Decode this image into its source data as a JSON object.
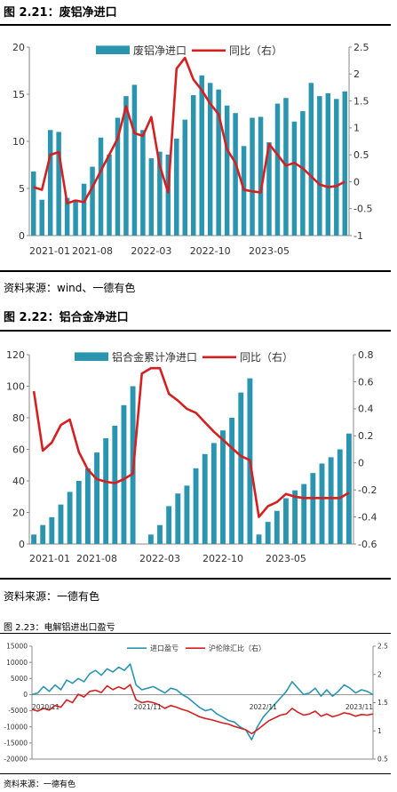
{
  "figures": [
    {
      "title": "图 2.21：废铝净进口",
      "source": "资料来源：wind、一德有色",
      "chart_data": {
        "type": "bar",
        "series": [
          {
            "name": "废铝净进口",
            "type": "bar",
            "axis": "left",
            "color": "#2B95B0",
            "values": [
              6.8,
              3.8,
              11.2,
              11.0,
              4.0,
              3.8,
              5.5,
              7.3,
              10.4,
              8.6,
              12.5,
              14.8,
              16.0,
              11.2,
              8.2,
              8.9,
              8.6,
              10.3,
              12.3,
              14.9,
              17.0,
              16.2,
              15.5,
              13.8,
              13.0,
              9.5,
              12.5,
              12.6,
              9.9,
              14.0,
              14.6,
              12.1,
              13.2,
              16.2,
              14.8,
              15.1,
              14.5,
              15.3
            ]
          },
          {
            "name": "同比（右）",
            "type": "line",
            "axis": "right",
            "color": "#D42020",
            "values": [
              -0.1,
              -0.15,
              0.5,
              0.55,
              -0.4,
              -0.35,
              -0.38,
              -0.1,
              0.2,
              0.5,
              0.8,
              1.4,
              0.9,
              0.85,
              1.2,
              0.3,
              -0.2,
              2.1,
              2.3,
              1.9,
              1.7,
              1.45,
              1.25,
              0.6,
              0.35,
              -0.15,
              -0.18,
              -0.2,
              0.7,
              0.5,
              0.3,
              0.35,
              0.25,
              0.1,
              -0.05,
              -0.1,
              -0.08,
              0.0
            ]
          }
        ],
        "x_labels": [
          "2021-01",
          "2021-08",
          "2022-03",
          "2022-10",
          "2023-05"
        ],
        "x_label_index": [
          0,
          7,
          14,
          21,
          28
        ],
        "y_left": {
          "min": 0,
          "max": 20,
          "ticks": [
            0,
            5,
            10,
            15,
            20
          ]
        },
        "y_right": {
          "min": -1,
          "max": 2.5,
          "ticks": [
            -1,
            -0.5,
            0,
            0.5,
            1,
            1.5,
            2,
            2.5
          ]
        },
        "legend": "top-center"
      }
    },
    {
      "title": "图 2.22：铝合金净进口",
      "source": "资料来源：一德有色",
      "chart_data": {
        "type": "bar",
        "series": [
          {
            "name": "铝合金累计净进口",
            "type": "bar",
            "axis": "left",
            "color": "#2B95B0",
            "values": [
              6,
              12,
              17,
              25,
              33,
              40,
              48,
              58,
              67,
              75,
              88,
              100,
              null,
              6,
              12,
              24,
              32,
              37,
              48,
              57,
              64,
              72,
              80,
              96,
              105,
              6,
              14,
              21,
              29,
              34,
              38,
              45,
              51,
              55,
              60,
              70
            ]
          },
          {
            "name": "同比（右）",
            "type": "line",
            "axis": "right",
            "color": "#D42020",
            "values": [
              0.53,
              0.09,
              0.15,
              0.28,
              0.32,
              0.08,
              -0.05,
              -0.12,
              -0.14,
              -0.15,
              -0.12,
              -0.08,
              0.66,
              0.7,
              0.7,
              0.51,
              0.46,
              0.4,
              0.37,
              0.3,
              0.23,
              0.17,
              0.11,
              0.05,
              0.02,
              -0.4,
              -0.32,
              -0.29,
              -0.23,
              -0.25,
              -0.26,
              -0.26,
              -0.26,
              -0.26,
              -0.26,
              -0.22
            ]
          }
        ],
        "x_labels": [
          "2021-01",
          "2021-08",
          "2022-03",
          "2022-10",
          "2023-05"
        ],
        "x_label_index": [
          0,
          7,
          14,
          21,
          28
        ],
        "y_left": {
          "min": 0,
          "max": 120,
          "ticks": [
            0,
            20,
            40,
            60,
            80,
            100,
            120
          ]
        },
        "y_right": {
          "min": -0.6,
          "max": 0.8,
          "ticks": [
            -0.6,
            -0.4,
            -0.2,
            0,
            0.2,
            0.4,
            0.6,
            0.8
          ]
        },
        "legend": "top-center"
      }
    },
    {
      "title": "图 2.23：电解铝进出口盈亏",
      "source": "资料来源：一德有色",
      "chart_data": {
        "type": "line",
        "series": [
          {
            "name": "进口盈亏",
            "axis": "left",
            "color": "#2B95B0",
            "values": [
              0,
              500,
              2500,
              1000,
              3000,
              1500,
              4500,
              3500,
              5000,
              4000,
              6500,
              7500,
              6000,
              8000,
              7000,
              8500,
              7500,
              9500,
              3000,
              1500,
              2000,
              2500,
              1500,
              500,
              2000,
              1500,
              0,
              -1000,
              -2500,
              -4000,
              -5000,
              -4500,
              -6000,
              -7000,
              -8000,
              -8500,
              -10000,
              -11000,
              -14000,
              -10000,
              -7000,
              -5000,
              -3000,
              -1000,
              1000,
              4000,
              2000,
              0,
              500,
              2000,
              -500,
              1500,
              -500,
              1000,
              3000,
              2000,
              500,
              1500,
              1000,
              0
            ]
          },
          {
            "name": "沪伦除汇比（右）",
            "axis": "right",
            "color": "#D42020",
            "values": [
              1.38,
              1.35,
              1.4,
              1.37,
              1.45,
              1.42,
              1.55,
              1.5,
              1.65,
              1.6,
              1.7,
              1.72,
              1.68,
              1.8,
              1.73,
              1.78,
              1.74,
              1.82,
              1.55,
              1.5,
              1.52,
              1.5,
              1.46,
              1.4,
              1.45,
              1.42,
              1.38,
              1.35,
              1.3,
              1.25,
              1.22,
              1.2,
              1.17,
              1.14,
              1.12,
              1.08,
              1.05,
              1.02,
              0.95,
              1.02,
              1.1,
              1.18,
              1.23,
              1.28,
              1.3,
              1.4,
              1.33,
              1.28,
              1.3,
              1.35,
              1.26,
              1.3,
              1.25,
              1.28,
              1.32,
              1.3,
              1.26,
              1.29,
              1.28,
              1.3
            ]
          }
        ],
        "x_labels": [
          "2020/11",
          "2021/11",
          "2022/11",
          "2023/11"
        ],
        "x_label_index": [
          0,
          20,
          40,
          59
        ],
        "y_left": {
          "min": -20000,
          "max": 15000,
          "ticks": [
            -20000,
            -15000,
            -10000,
            -5000,
            0,
            5000,
            10000,
            15000
          ]
        },
        "y_right": {
          "min": 0.5,
          "max": 2.5,
          "ticks": [
            0.5,
            1,
            1.5,
            2,
            2.5
          ]
        },
        "legend": "top-center"
      }
    }
  ]
}
